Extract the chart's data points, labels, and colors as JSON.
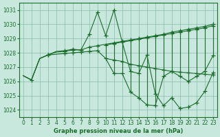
{
  "title": "Graphe pression niveau de la mer (hPa)",
  "bg_color": "#c8e8de",
  "grid_color": "#88bbaa",
  "line_color": "#1a6b2a",
  "xlim": [
    -0.5,
    23.5
  ],
  "ylim": [
    1023.5,
    1031.5
  ],
  "yticks": [
    1024,
    1025,
    1026,
    1027,
    1028,
    1029,
    1030,
    1031
  ],
  "xticks": [
    0,
    1,
    2,
    3,
    4,
    5,
    6,
    7,
    8,
    9,
    10,
    11,
    12,
    13,
    14,
    15,
    16,
    17,
    18,
    19,
    20,
    21,
    22,
    23
  ],
  "s_jagged": [
    1026.4,
    1026.1,
    1027.6,
    1027.85,
    1028.05,
    1028.1,
    1028.2,
    1028.2,
    1029.3,
    1030.85,
    1029.2,
    1031.0,
    1028.75,
    1026.7,
    1026.55,
    1027.85,
    1025.15,
    1024.3,
    1024.85,
    1024.1,
    1024.2,
    1024.5,
    1025.3,
    1026.6
  ],
  "s_upper": [
    1026.4,
    1026.1,
    1027.6,
    1027.85,
    1028.1,
    1028.15,
    1028.25,
    1028.2,
    1028.4,
    1028.5,
    1028.6,
    1028.7,
    1028.8,
    1028.9,
    1029.0,
    1029.1,
    1029.2,
    1029.3,
    1029.45,
    1029.55,
    1029.65,
    1029.75,
    1029.85,
    1030.0
  ],
  "s_lower": [
    1026.4,
    1026.1,
    1027.6,
    1027.85,
    1027.9,
    1027.95,
    1028.0,
    1028.05,
    1028.1,
    1028.15,
    1027.6,
    1027.5,
    1027.4,
    1027.2,
    1027.1,
    1027.0,
    1026.9,
    1026.8,
    1026.7,
    1026.65,
    1026.6,
    1026.55,
    1026.5,
    1026.45
  ],
  "s_zigzag_high": [
    null,
    null,
    null,
    null,
    null,
    null,
    null,
    null,
    null,
    null,
    1028.55,
    1028.65,
    1028.75,
    1028.85,
    1028.95,
    1029.05,
    1029.15,
    1029.25,
    1029.35,
    1029.45,
    1029.55,
    1029.65,
    1029.75,
    1029.9
  ],
  "s_zigzag_low": [
    null,
    null,
    null,
    null,
    null,
    null,
    null,
    null,
    null,
    null,
    1027.6,
    1026.55,
    1026.55,
    1025.25,
    1024.85,
    1024.35,
    1024.3,
    1026.35,
    1026.7,
    1026.35,
    1026.0,
    1026.35,
    1026.7,
    1027.8
  ],
  "markers_jagged": [
    1,
    3,
    5,
    6,
    7,
    8,
    9,
    10,
    11,
    12,
    13,
    14,
    15,
    16,
    17,
    18,
    19,
    20,
    21,
    22,
    23
  ],
  "markers_upper": [
    3,
    5,
    6,
    7,
    8,
    9,
    11,
    12,
    13,
    14,
    15,
    16,
    17,
    18,
    19,
    20,
    21,
    22,
    23
  ],
  "markers_lower": [
    3,
    5,
    6,
    7,
    8,
    9,
    11,
    12,
    13,
    14,
    15,
    16,
    17,
    18,
    19,
    20,
    21,
    22,
    23
  ],
  "markers_zigzag": [
    10,
    11,
    12,
    13,
    14,
    15,
    16,
    17,
    18,
    19,
    20,
    21,
    22,
    23
  ]
}
